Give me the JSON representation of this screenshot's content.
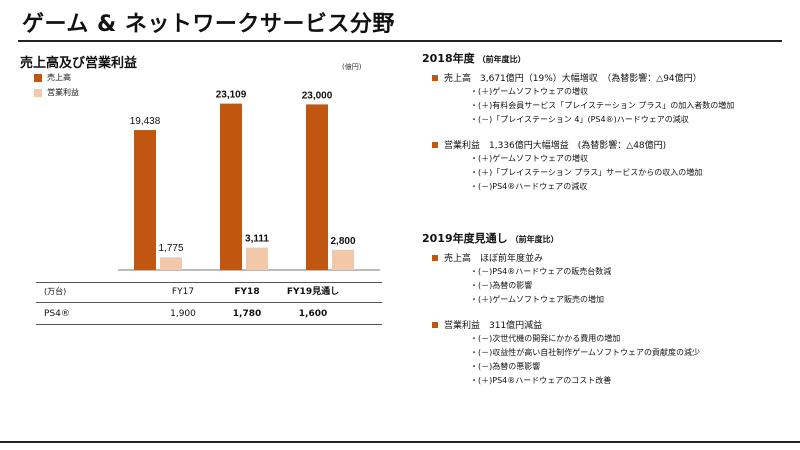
{
  "page": {
    "title": "ゲーム & ネットワークサービス分野"
  },
  "left": {
    "section_title": "売上高及び営業利益",
    "unit": "(億円)",
    "legend": [
      "売上高",
      "営業利益"
    ],
    "table": {
      "unit_label": "(万台)",
      "header": [
        "FY17",
        "FY18",
        "FY19見通し"
      ],
      "row_label": "PS4®",
      "values": [
        "1,900",
        "1,780",
        "1,600"
      ]
    }
  },
  "chart_data": {
    "type": "bar",
    "categories": [
      "FY17",
      "FY18",
      "FY19見通し"
    ],
    "series": [
      {
        "name": "売上高",
        "values": [
          19438,
          23109,
          23000
        ],
        "labels": [
          "19,438",
          "23,109",
          "23,000"
        ],
        "color": "#c0560f"
      },
      {
        "name": "営業利益",
        "values": [
          1775,
          3111,
          2800
        ],
        "labels": [
          "1,775",
          "3,111",
          "2,800"
        ],
        "color": "#f3c8a8"
      }
    ],
    "title": "売上高及び営業利益",
    "ylabel": "(億円)",
    "ylim": [
      0,
      25000
    ],
    "grid": false,
    "legend": "top-left",
    "bold_categories": [
      false,
      true,
      true
    ]
  },
  "right": {
    "sections": [
      {
        "title": "2018年度",
        "subtitle": "（前年度比）",
        "blocks": [
          {
            "bullet": "売上高　3,671億円（19%）大幅増収　（為替影響：△94億円）",
            "lines": [
              "・(＋)ゲームソフトウェアの増収",
              "・(＋)有料会員サービス「プレイステーション プラス」の加入者数の増加",
              "・(－)「プレイステーション 4」(PS4®)ハードウェアの減収"
            ]
          },
          {
            "bullet": "営業利益　1,336億円大幅増益　(為替影響：△48億円)",
            "lines": [
              "・(＋)ゲームソフトウェアの増収",
              "・(＋)「プレイステーション プラス」サービスからの収入の増加",
              "・(－)PS4®ハードウェアの減収"
            ]
          }
        ]
      },
      {
        "title": "2019年度見通し",
        "subtitle": "（前年度比）",
        "blocks": [
          {
            "bullet": "売上高　ほぼ前年度並み",
            "lines": [
              "・(－)PS4®ハードウェアの販売台数減",
              "・(－)為替の影響",
              "・(＋)ゲームソフトウェア販売の増加"
            ]
          },
          {
            "bullet": "営業利益　311億円減益",
            "lines": [
              "・(－)次世代機の開発にかかる費用の増加",
              "・(－)収益性が高い自社制作ゲームソフトウェアの貢献度の減少",
              "・(－)為替の悪影響",
              "・(＋)PS4®ハードウェアのコスト改善"
            ]
          }
        ]
      }
    ]
  }
}
